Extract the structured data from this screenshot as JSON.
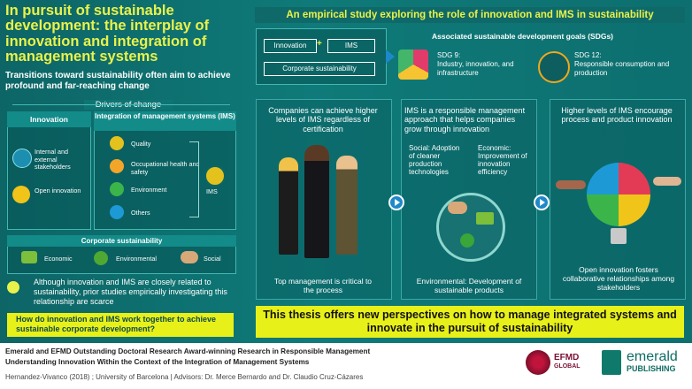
{
  "title": "In pursuit of sustainable development: the interplay of innovation and integration of management systems",
  "subtitle": "Transitions toward sustainability often aim to achieve profound and far-reaching change",
  "drivers": {
    "heading": "Drivers of change",
    "innovation": {
      "header": "Innovation",
      "items": [
        "Internal and external stakeholders",
        "Open innovation"
      ]
    },
    "ims": {
      "header": "Integration of management systems (IMS)",
      "items": [
        "Quality",
        "Occupational health and safety",
        "Environment",
        "Others"
      ],
      "result": "IMS"
    }
  },
  "corporate": {
    "header": "Corporate sustainability",
    "items": [
      "Economic",
      "Environmental",
      "Social"
    ]
  },
  "gap_text": "Although innovation and IMS are closely related to sustainability, prior studies empirically investigating this relationship are scarce",
  "question": "How do innovation and IMS work together to achieve sustainable corporate development?",
  "study_title": "An empirical study exploring the role of innovation and IMS in sustainability",
  "flow": {
    "innovation": "Innovation",
    "ims": "IMS",
    "plus": "+",
    "corporate": "Corporate sustainability"
  },
  "sdg": {
    "heading": "Associated sustainable development goals (SDGs)",
    "sdg9_title": "SDG 9:",
    "sdg9_text": "Industry, innovation, and infrastructure",
    "sdg12_title": "SDG 12:",
    "sdg12_text": "Responsible consumption and production"
  },
  "findings": [
    {
      "title": "Companies can achieve higher levels of IMS regardless of certification",
      "caption": "Top management is critical to the process"
    },
    {
      "title": "IMS is a responsible management approach that helps companies grow through innovation",
      "social": "Social: Adoption of cleaner production technologies",
      "economic": "Economic: Improvement of innovation efficiency",
      "environmental": "Environmental: Development of sustainable products"
    },
    {
      "title": "Higher levels of IMS encourage process and product innovation",
      "caption": "Open innovation fosters collaborative relationships among stakeholders"
    }
  ],
  "conclusion": "This thesis offers new perspectives on how to manage integrated systems and innovate in the pursuit of sustainability",
  "footer": {
    "line1": "Emerald and EFMD Outstanding Doctoral Research Award-winning Research in Responsible Management",
    "line2": "Understanding Innovation Within the Context of the Integration of Management Systems",
    "line3": "Hernandez-Vivanco (2018) ; University of Barcelona  |  Advisors: Dr. Merce Bernardo and Dr. Claudio Cruz-Cázares",
    "efmd_line1": "EFMD",
    "efmd_line2": "GLOBAL",
    "emerald_line1": "emerald",
    "emerald_line2": "PUBLISHING"
  }
}
